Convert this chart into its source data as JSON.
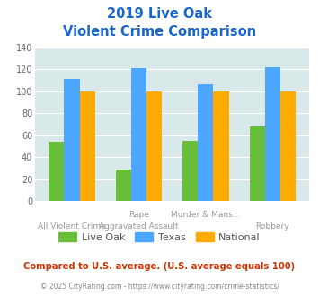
{
  "title_line1": "2019 Live Oak",
  "title_line2": "Violent Crime Comparison",
  "top_labels": [
    "",
    "Rape",
    "Murder & Mans...",
    ""
  ],
  "bot_labels": [
    "All Violent Crime",
    "Aggravated Assault",
    "",
    "Robbery"
  ],
  "live_oak": [
    54,
    29,
    55,
    68
  ],
  "texas": [
    111,
    121,
    106,
    122
  ],
  "national": [
    100,
    100,
    100,
    100
  ],
  "live_oak_color": "#6abf3a",
  "texas_color": "#4da6ff",
  "national_color": "#ffaa00",
  "ylim": [
    0,
    140
  ],
  "yticks": [
    0,
    20,
    40,
    60,
    80,
    100,
    120,
    140
  ],
  "background_color": "#d9e8e8",
  "title_color": "#1a66cc",
  "footer_text": "Compared to U.S. average. (U.S. average equals 100)",
  "footer_color": "#cc3300",
  "credit_text": "© 2025 CityRating.com - https://www.cityrating.com/crime-statistics/",
  "credit_color": "#888888"
}
